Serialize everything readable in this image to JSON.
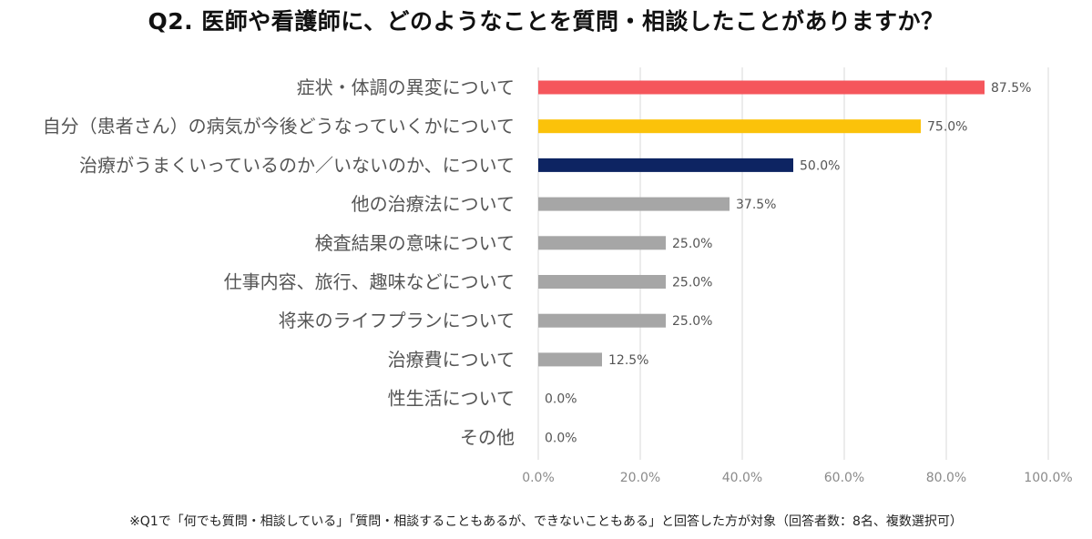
{
  "chart_data": {
    "type": "bar",
    "orientation": "horizontal",
    "title": "Q2. 医師や看護師に、どのようなことを質問・相談したことがありますか？",
    "categories": [
      "症状・体調の異変について",
      "自分（患者さん）の病気が今後どうなっていくかについて",
      "治療がうまくいっているのか／いないのか、について",
      "他の治療法について",
      "検査結果の意味について",
      "仕事内容、旅行、趣味などについて",
      "将来のライフプランについて",
      "治療費について",
      "性生活について",
      "その他"
    ],
    "values": [
      87.5,
      75.0,
      50.0,
      37.5,
      25.0,
      25.0,
      25.0,
      12.5,
      0.0,
      0.0
    ],
    "value_labels": [
      "87.5%",
      "75.0%",
      "50.0%",
      "37.5%",
      "25.0%",
      "25.0%",
      "25.0%",
      "12.5%",
      "0.0%",
      "0.0%"
    ],
    "bar_colors": [
      "#f5565c",
      "#fbc20a",
      "#0d2462",
      "#a6a6a6",
      "#a6a6a6",
      "#a6a6a6",
      "#a6a6a6",
      "#a6a6a6",
      "#a6a6a6",
      "#a6a6a6"
    ],
    "xlim": [
      0,
      100
    ],
    "x_ticks": [
      0,
      20,
      40,
      60,
      80,
      100
    ],
    "x_tick_labels": [
      "0.0%",
      "20.0%",
      "40.0%",
      "60.0%",
      "80.0%",
      "100.0%"
    ],
    "grid": true,
    "legend": "none"
  },
  "footnote": "※Q1で「何でも質問・相談している」「質問・相談することもあるが、できないこともある」と回答した方が対象（回答者数：8名、複数選択可）"
}
